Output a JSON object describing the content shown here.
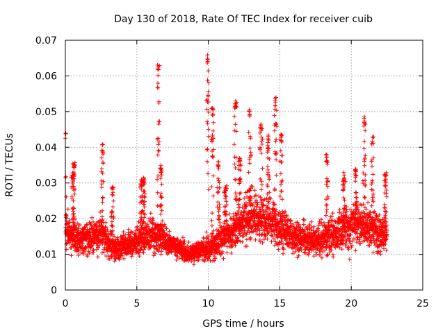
{
  "chart_data": {
    "type": "scatter",
    "title": "Day 130 of 2018, Rate Of TEC Index for receiver cuib",
    "xlabel": "GPS time / hours",
    "ylabel": "ROTI / TECUs",
    "xlim": [
      0,
      25
    ],
    "ylim": [
      0,
      0.07
    ],
    "xticks": [
      0,
      5,
      10,
      15,
      20,
      25
    ],
    "xtick_labels": [
      "0",
      "5",
      "10",
      "15",
      "20",
      "25"
    ],
    "yticks": [
      0,
      0.01,
      0.02,
      0.03,
      0.04,
      0.05,
      0.06,
      0.07
    ],
    "ytick_labels": [
      "0",
      "0.01",
      "0.02",
      "0.03",
      "0.04",
      "0.05",
      "0.06",
      "0.07"
    ],
    "grid": true,
    "marker": "+",
    "color": "#ff0000",
    "series": [
      {
        "name": "ROTI",
        "x_range": [
          0,
          22.5
        ],
        "sample_step_hours": 0.02,
        "baseline_profile": [
          {
            "x": 0.0,
            "y": 0.016,
            "spread": 0.01
          },
          {
            "x": 1.0,
            "y": 0.013,
            "spread": 0.007
          },
          {
            "x": 2.5,
            "y": 0.015,
            "spread": 0.009
          },
          {
            "x": 3.5,
            "y": 0.011,
            "spread": 0.005
          },
          {
            "x": 5.0,
            "y": 0.013,
            "spread": 0.007
          },
          {
            "x": 6.0,
            "y": 0.015,
            "spread": 0.008
          },
          {
            "x": 7.0,
            "y": 0.013,
            "spread": 0.006
          },
          {
            "x": 8.5,
            "y": 0.01,
            "spread": 0.004
          },
          {
            "x": 10.0,
            "y": 0.011,
            "spread": 0.006
          },
          {
            "x": 11.5,
            "y": 0.015,
            "spread": 0.009
          },
          {
            "x": 13.0,
            "y": 0.02,
            "spread": 0.011
          },
          {
            "x": 14.5,
            "y": 0.018,
            "spread": 0.011
          },
          {
            "x": 16.0,
            "y": 0.014,
            "spread": 0.007
          },
          {
            "x": 17.5,
            "y": 0.013,
            "spread": 0.007
          },
          {
            "x": 19.0,
            "y": 0.015,
            "spread": 0.009
          },
          {
            "x": 20.5,
            "y": 0.018,
            "spread": 0.011
          },
          {
            "x": 21.5,
            "y": 0.016,
            "spread": 0.01
          },
          {
            "x": 22.5,
            "y": 0.014,
            "spread": 0.008
          }
        ],
        "spikes": [
          {
            "x": 0.0,
            "peak": 0.045
          },
          {
            "x": 0.5,
            "peak": 0.034
          },
          {
            "x": 0.6,
            "peak": 0.036
          },
          {
            "x": 2.6,
            "peak": 0.041
          },
          {
            "x": 3.3,
            "peak": 0.029
          },
          {
            "x": 5.3,
            "peak": 0.031
          },
          {
            "x": 5.5,
            "peak": 0.032
          },
          {
            "x": 6.5,
            "peak": 0.064
          },
          {
            "x": 6.7,
            "peak": 0.035
          },
          {
            "x": 9.95,
            "peak": 0.066
          },
          {
            "x": 10.3,
            "peak": 0.051
          },
          {
            "x": 10.7,
            "peak": 0.036
          },
          {
            "x": 11.2,
            "peak": 0.03
          },
          {
            "x": 11.9,
            "peak": 0.053
          },
          {
            "x": 12.2,
            "peak": 0.038
          },
          {
            "x": 12.9,
            "peak": 0.051
          },
          {
            "x": 13.7,
            "peak": 0.047
          },
          {
            "x": 14.2,
            "peak": 0.044
          },
          {
            "x": 14.7,
            "peak": 0.054
          },
          {
            "x": 15.1,
            "peak": 0.044
          },
          {
            "x": 18.3,
            "peak": 0.038
          },
          {
            "x": 19.5,
            "peak": 0.033
          },
          {
            "x": 20.3,
            "peak": 0.034
          },
          {
            "x": 20.9,
            "peak": 0.049
          },
          {
            "x": 21.5,
            "peak": 0.043
          },
          {
            "x": 22.4,
            "peak": 0.033
          }
        ]
      }
    ]
  }
}
